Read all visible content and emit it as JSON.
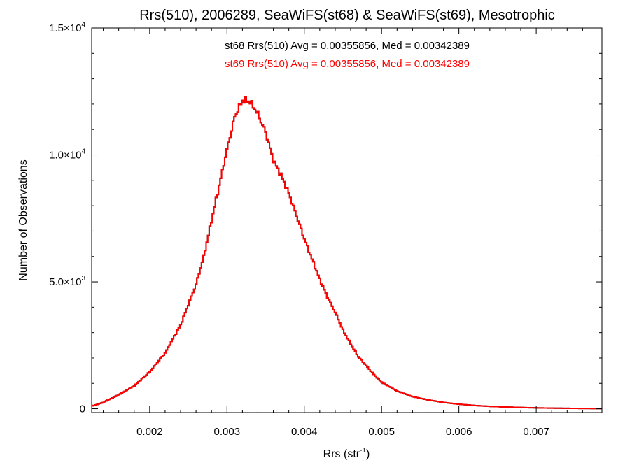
{
  "chart_data": {
    "type": "histogram-step",
    "title": "Rrs(510), 2006289, SeaWiFS(st68) & SeaWiFS(st69), Mesotrophic",
    "xlabel": {
      "base": "Rrs (str",
      "sup": "-1",
      "close": ")"
    },
    "ylabel": "Number of Observations",
    "xlim": [
      0.00125,
      0.00785
    ],
    "ylim": [
      -150,
      15000
    ],
    "x_ticks": [
      {
        "value": 0.002,
        "label": "0.002"
      },
      {
        "value": 0.003,
        "label": "0.003"
      },
      {
        "value": 0.004,
        "label": "0.004"
      },
      {
        "value": 0.005,
        "label": "0.005"
      },
      {
        "value": 0.006,
        "label": "0.006"
      },
      {
        "value": 0.007,
        "label": "0.007"
      }
    ],
    "y_ticks": [
      {
        "value": 0,
        "mant": "0",
        "exp": ""
      },
      {
        "value": 5000,
        "mant": "5.0×10",
        "exp": "3"
      },
      {
        "value": 10000,
        "mant": "1.0×10",
        "exp": "4"
      },
      {
        "value": 15000,
        "mant": "1.5×10",
        "exp": "4"
      }
    ],
    "annotations": [
      {
        "text": "st68 Rrs(510) Avg = 0.00355856, Med = 0.00342389",
        "color": "#000000"
      },
      {
        "text": "st69 Rrs(510) Avg = 0.00355856, Med = 0.00342389",
        "color": "#ff0000"
      }
    ],
    "series": [
      {
        "name": "st68",
        "color": "#000000"
      },
      {
        "name": "st69",
        "color": "#ff0000"
      }
    ],
    "anchors": [
      [
        0.00125,
        100
      ],
      [
        0.0014,
        250
      ],
      [
        0.0016,
        550
      ],
      [
        0.0018,
        900
      ],
      [
        0.002,
        1450
      ],
      [
        0.0022,
        2200
      ],
      [
        0.0024,
        3300
      ],
      [
        0.0026,
        4900
      ],
      [
        0.0027,
        6000
      ],
      [
        0.0028,
        7400
      ],
      [
        0.0029,
        8800
      ],
      [
        0.003,
        10200
      ],
      [
        0.0031,
        11500
      ],
      [
        0.0032,
        12150
      ],
      [
        0.0033,
        12100
      ],
      [
        0.0034,
        11600
      ],
      [
        0.0035,
        10900
      ],
      [
        0.0036,
        9800
      ],
      [
        0.0037,
        9200
      ],
      [
        0.0038,
        8500
      ],
      [
        0.0039,
        7600
      ],
      [
        0.004,
        6700
      ],
      [
        0.0041,
        5900
      ],
      [
        0.0042,
        5100
      ],
      [
        0.0043,
        4400
      ],
      [
        0.0044,
        3800
      ],
      [
        0.0045,
        3100
      ],
      [
        0.0046,
        2550
      ],
      [
        0.0047,
        2050
      ],
      [
        0.0048,
        1700
      ],
      [
        0.0049,
        1350
      ],
      [
        0.005,
        1050
      ],
      [
        0.0052,
        700
      ],
      [
        0.0054,
        480
      ],
      [
        0.0056,
        350
      ],
      [
        0.0058,
        250
      ],
      [
        0.006,
        180
      ],
      [
        0.0062,
        130
      ],
      [
        0.0064,
        95
      ],
      [
        0.0066,
        70
      ],
      [
        0.0068,
        50
      ],
      [
        0.007,
        35
      ],
      [
        0.0072,
        25
      ],
      [
        0.0074,
        18
      ],
      [
        0.0076,
        12
      ],
      [
        0.00785,
        8
      ]
    ]
  }
}
